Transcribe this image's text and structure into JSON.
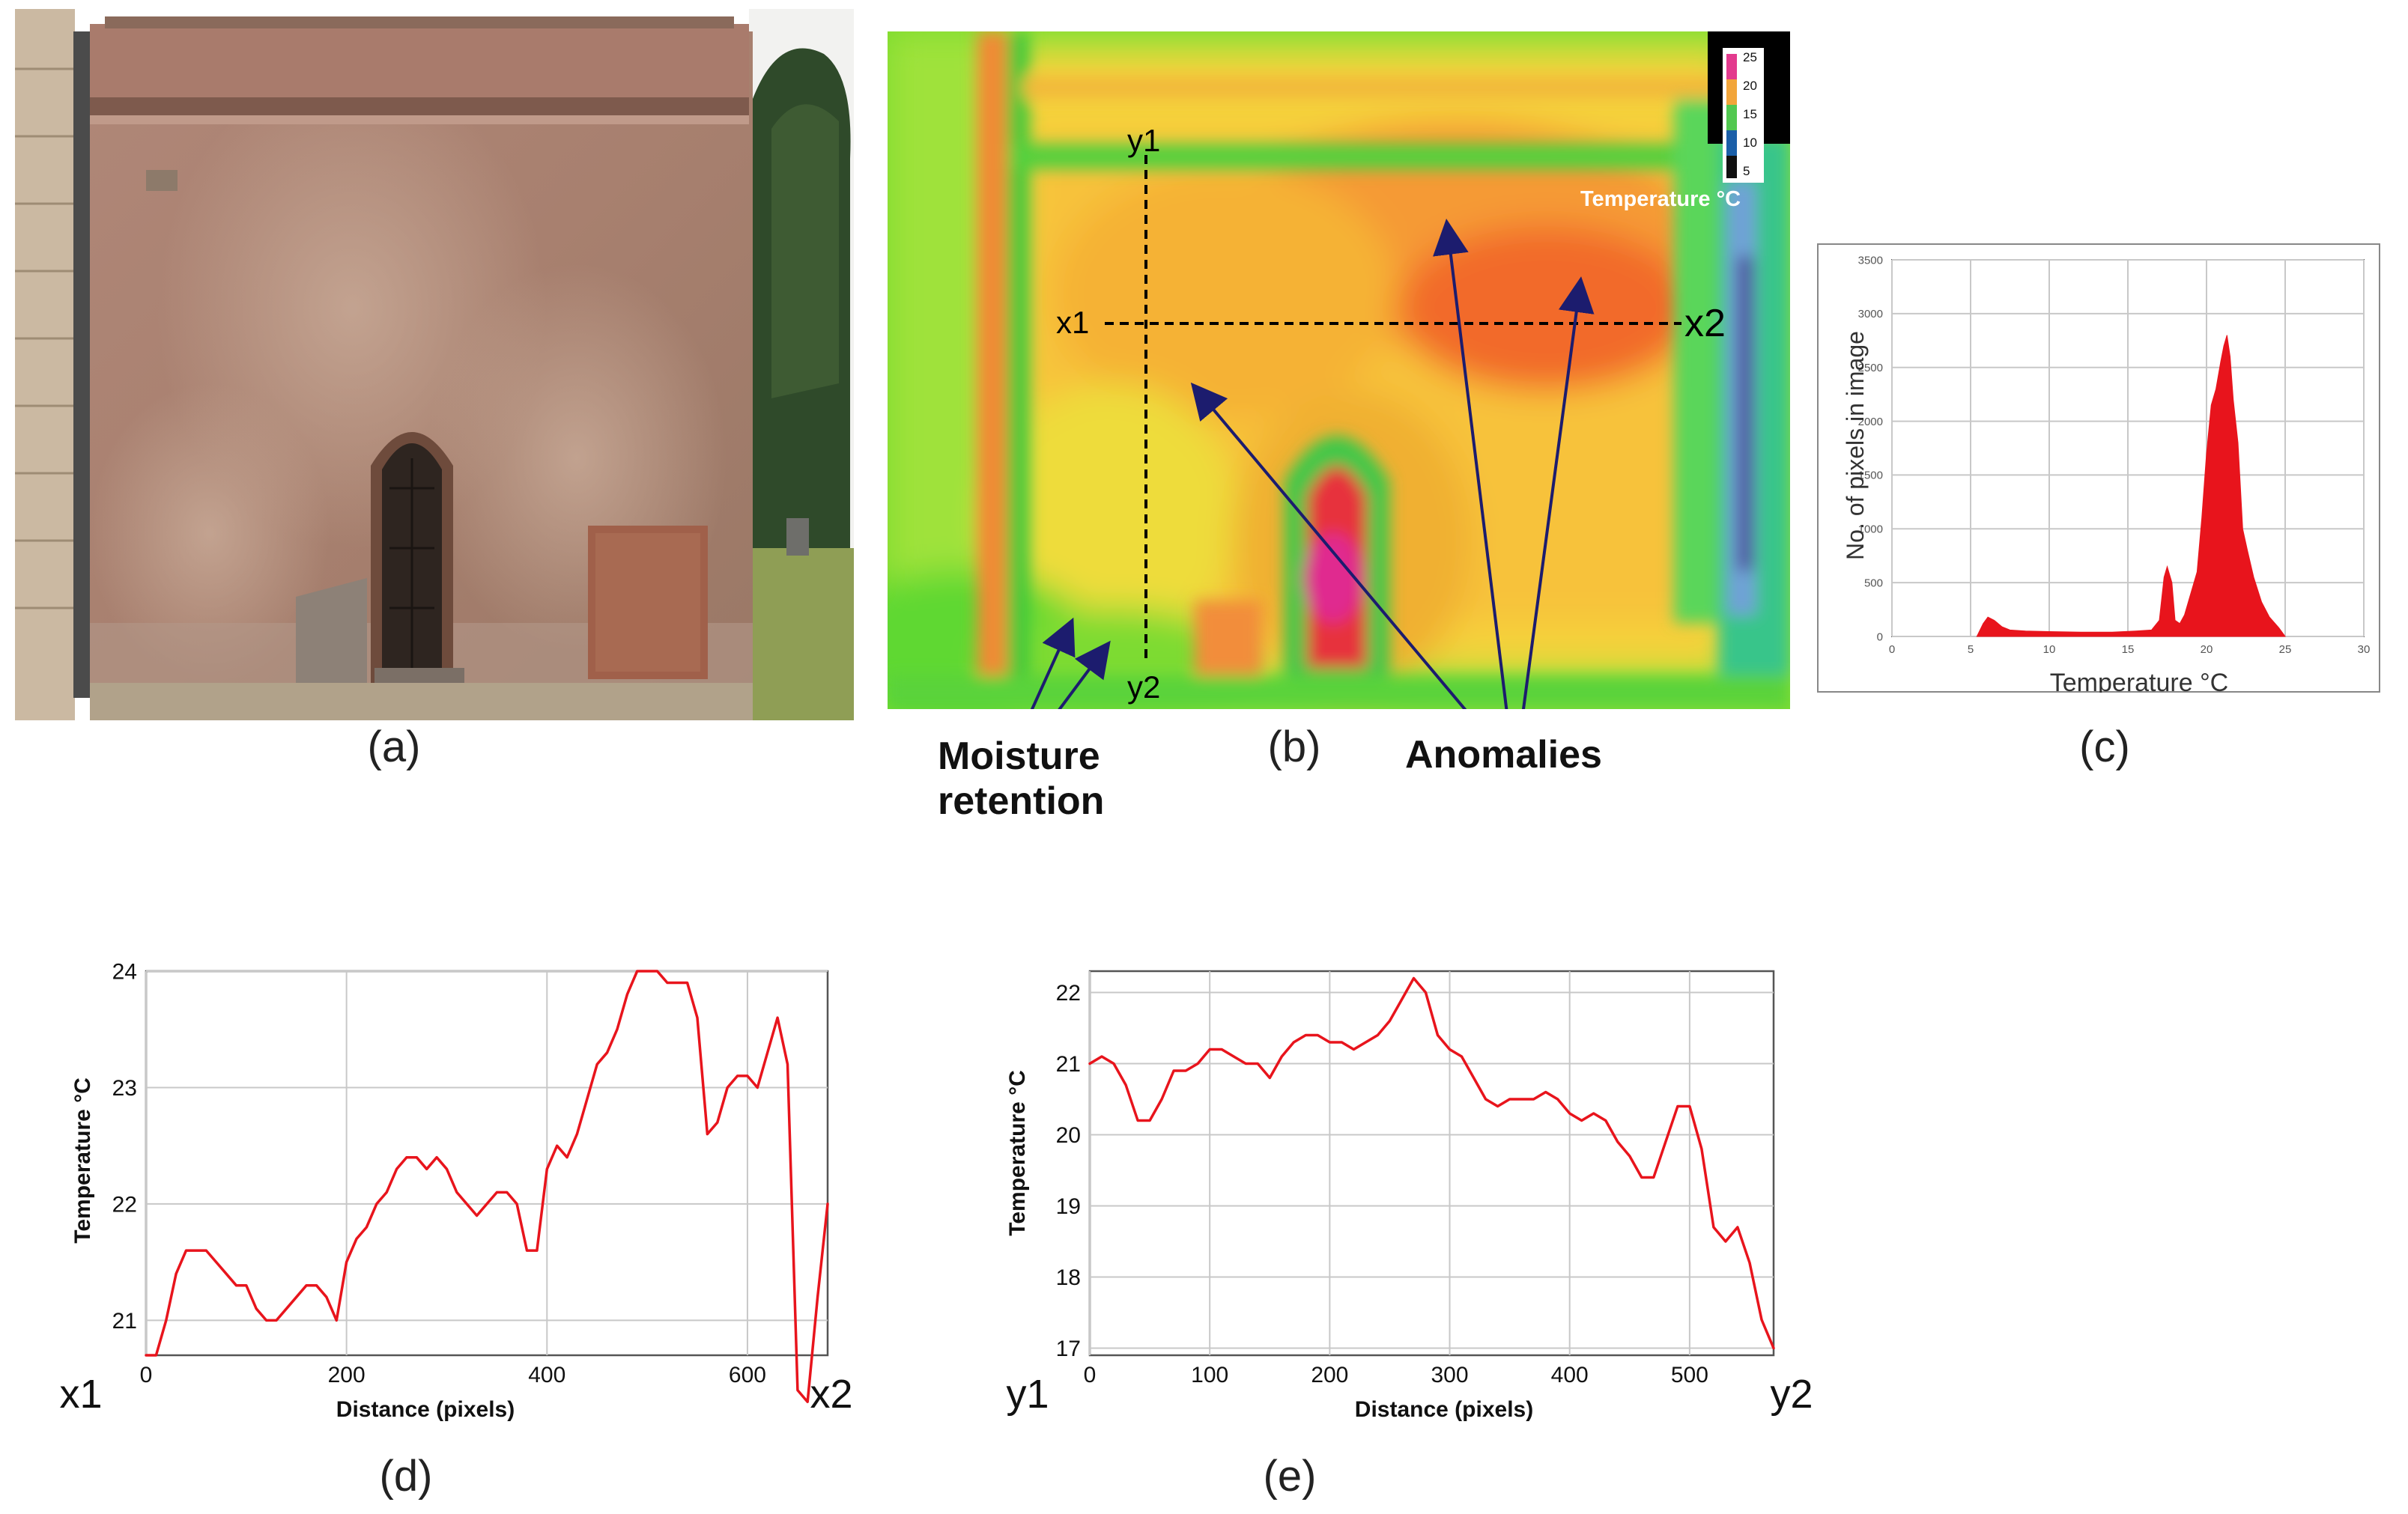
{
  "labels": {
    "a": "(a)",
    "b": "(b)",
    "c": "(c)",
    "d": "(d)",
    "e": "(e)"
  },
  "thermal": {
    "colorbar_ticks": [
      "25",
      "20",
      "15",
      "10",
      "5"
    ],
    "colorbar_title": "Temperature °C",
    "line_labels": {
      "x1": "x1",
      "x2": "x2",
      "y1": "y1",
      "y2": "y2"
    },
    "annotations": {
      "moisture": [
        "Moisture",
        "retention"
      ],
      "anomalies": "Anomalies"
    }
  },
  "colors": {
    "line": "#e8141c",
    "grid": "#c8c8c8",
    "arrow": "#1c1c6e"
  },
  "chart_data": [
    {
      "id": "c",
      "type": "area",
      "xlabel": "Temperature °C",
      "ylabel": "No. of pixels in image",
      "xlim": [
        0,
        30
      ],
      "ylim": [
        0,
        3500
      ],
      "xticks": [
        "0",
        "5",
        "10",
        "15",
        "20",
        "25",
        "30"
      ],
      "yticks": [
        "0",
        "500",
        "1000",
        "1500",
        "2000",
        "2500",
        "3000",
        "3500"
      ],
      "x": [
        5.4,
        5.8,
        6.1,
        6.5,
        7.0,
        7.5,
        8.5,
        10.0,
        12.0,
        14.0,
        15.5,
        16.5,
        17.0,
        17.3,
        17.5,
        17.8,
        18.0,
        18.3,
        18.6,
        19.0,
        19.4,
        19.7,
        20.0,
        20.3,
        20.6,
        20.9,
        21.1,
        21.3,
        21.5,
        21.7,
        22.0,
        22.3,
        22.6,
        23.0,
        23.5,
        24.0,
        24.6,
        25.0
      ],
      "values": [
        0,
        120,
        180,
        150,
        90,
        60,
        50,
        45,
        40,
        40,
        50,
        60,
        150,
        550,
        650,
        500,
        150,
        120,
        200,
        400,
        600,
        1100,
        1700,
        2150,
        2300,
        2550,
        2700,
        2800,
        2600,
        2200,
        1800,
        1000,
        800,
        550,
        320,
        180,
        80,
        0
      ],
      "grid": true
    },
    {
      "id": "d",
      "type": "line",
      "xlabel": "Distance (pixels)",
      "ylabel": "Temperature °C",
      "xlim": [
        0,
        680
      ],
      "ylim": [
        20.7,
        24.0
      ],
      "xticks": [
        "0",
        "200",
        "400",
        "600"
      ],
      "yticks": [
        "21",
        "22",
        "23",
        "24"
      ],
      "end_labels": [
        "x1",
        "x2"
      ],
      "x": [
        0,
        10,
        20,
        30,
        40,
        50,
        60,
        70,
        80,
        90,
        100,
        110,
        120,
        130,
        140,
        150,
        160,
        170,
        180,
        190,
        200,
        210,
        220,
        230,
        240,
        250,
        260,
        270,
        280,
        290,
        300,
        310,
        320,
        330,
        340,
        350,
        360,
        370,
        380,
        390,
        400,
        410,
        420,
        430,
        440,
        450,
        460,
        470,
        480,
        490,
        500,
        510,
        520,
        530,
        540,
        550,
        560,
        570,
        580,
        590,
        600,
        610,
        620,
        630,
        640,
        650,
        660,
        670,
        680
      ],
      "values": [
        20.7,
        20.7,
        21.0,
        21.4,
        21.6,
        21.6,
        21.6,
        21.5,
        21.4,
        21.3,
        21.3,
        21.1,
        21.0,
        21.0,
        21.1,
        21.2,
        21.3,
        21.3,
        21.2,
        21.0,
        21.5,
        21.7,
        21.8,
        22.0,
        22.1,
        22.3,
        22.4,
        22.4,
        22.3,
        22.4,
        22.3,
        22.1,
        22.0,
        21.9,
        22.0,
        22.1,
        22.1,
        22.0,
        21.6,
        21.6,
        22.3,
        22.5,
        22.4,
        22.6,
        22.9,
        23.2,
        23.3,
        23.5,
        23.8,
        24.0,
        24.0,
        24.0,
        23.9,
        23.9,
        23.9,
        23.6,
        22.6,
        22.7,
        23.0,
        23.1,
        23.1,
        23.0,
        23.3,
        23.6,
        23.2,
        20.4,
        20.3,
        21.2,
        22.0
      ],
      "grid": true
    },
    {
      "id": "e",
      "type": "line",
      "xlabel": "Distance (pixels)",
      "ylabel": "Temperature °C",
      "xlim": [
        0,
        570
      ],
      "ylim": [
        16.9,
        22.3
      ],
      "xticks": [
        "0",
        "100",
        "200",
        "300",
        "400",
        "500"
      ],
      "yticks": [
        "17",
        "18",
        "19",
        "20",
        "21",
        "22"
      ],
      "end_labels": [
        "y1",
        "y2"
      ],
      "x": [
        0,
        10,
        20,
        30,
        40,
        50,
        60,
        70,
        80,
        90,
        100,
        110,
        120,
        130,
        140,
        150,
        160,
        170,
        180,
        190,
        200,
        210,
        220,
        230,
        240,
        250,
        260,
        270,
        280,
        290,
        300,
        310,
        320,
        330,
        340,
        350,
        360,
        370,
        380,
        390,
        400,
        410,
        420,
        430,
        440,
        450,
        460,
        470,
        480,
        490,
        500,
        510,
        520,
        530,
        540,
        550,
        560,
        570
      ],
      "values": [
        21.0,
        21.1,
        21.0,
        20.7,
        20.2,
        20.2,
        20.5,
        20.9,
        20.9,
        21.0,
        21.2,
        21.2,
        21.1,
        21.0,
        21.0,
        20.8,
        21.1,
        21.3,
        21.4,
        21.4,
        21.3,
        21.3,
        21.2,
        21.3,
        21.4,
        21.6,
        21.9,
        22.2,
        22.0,
        21.4,
        21.2,
        21.1,
        20.8,
        20.5,
        20.4,
        20.5,
        20.5,
        20.5,
        20.6,
        20.5,
        20.3,
        20.2,
        20.3,
        20.2,
        19.9,
        19.7,
        19.4,
        19.4,
        19.9,
        20.4,
        20.4,
        19.8,
        18.7,
        18.5,
        18.7,
        18.2,
        17.4,
        17.0
      ],
      "grid": true
    }
  ]
}
